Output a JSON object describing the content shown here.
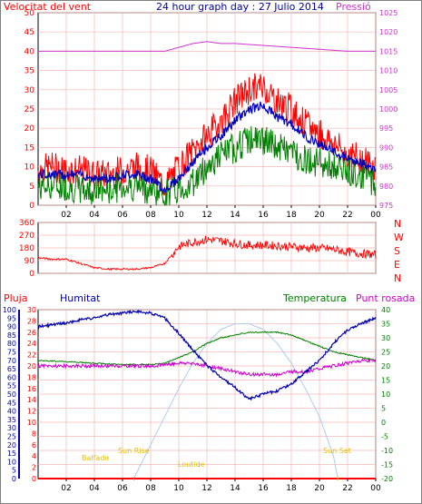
{
  "title": "24 hour graph day : 27 Julio 2014",
  "colors": {
    "background": "#ffffff",
    "plot_bg": "#ffffff",
    "grid": "#f0b8b8",
    "frame": "#000000",
    "wind": "#ff0000",
    "wind_avg": "#0000bb",
    "wind_dir_green": "#008000",
    "pressure": "#cc33cc",
    "title": "#0000a0",
    "rain": "#ff0000",
    "humidity": "#0000aa",
    "temperature": "#008000",
    "dewpoint": "#cc00cc",
    "sun": "#aaccee",
    "sun_labels": "#e0c000"
  },
  "chart_data": [
    {
      "type": "line",
      "id": "wind-pressure",
      "ylabel_left": "Velocitat del vent",
      "ylabel_right": "Pressió",
      "x_ticks": [
        "02",
        "04",
        "06",
        "08",
        "10",
        "12",
        "14",
        "16",
        "18",
        "20",
        "22",
        "00"
      ],
      "x_tick_hours": [
        2,
        4,
        6,
        8,
        10,
        12,
        14,
        16,
        18,
        20,
        22,
        24
      ],
      "ylim_left": [
        0,
        50
      ],
      "yticks_left": [
        0,
        5,
        10,
        15,
        20,
        25,
        30,
        35,
        40,
        45,
        50
      ],
      "ylim_right": [
        975,
        1025
      ],
      "yticks_right": [
        975,
        980,
        985,
        990,
        995,
        1000,
        1005,
        1010,
        1015,
        1020,
        1025
      ],
      "series": [
        {
          "key": "gust",
          "hours": [
            0,
            1,
            2,
            3,
            4,
            5,
            6,
            7,
            8,
            9,
            10,
            11,
            12,
            13,
            14,
            15,
            16,
            17,
            18,
            19,
            20,
            21,
            22,
            23,
            24
          ],
          "values": [
            9,
            10,
            9,
            9,
            8,
            8,
            9,
            10,
            9,
            5,
            10,
            14,
            18,
            22,
            27,
            30,
            31,
            27,
            25,
            21,
            19,
            16,
            13,
            12,
            10
          ]
        },
        {
          "key": "avg",
          "hours": [
            0,
            1,
            2,
            3,
            4,
            5,
            6,
            7,
            8,
            9,
            10,
            11,
            12,
            13,
            14,
            15,
            16,
            17,
            18,
            19,
            20,
            21,
            22,
            23,
            24
          ],
          "values": [
            8,
            8,
            8,
            8,
            7,
            7,
            8,
            8,
            7,
            4,
            7,
            11,
            15,
            18,
            22,
            25,
            26,
            23,
            21,
            18,
            16,
            14,
            12,
            11,
            9
          ]
        },
        {
          "key": "min",
          "hours": [
            0,
            1,
            2,
            3,
            4,
            5,
            6,
            7,
            8,
            9,
            10,
            11,
            12,
            13,
            14,
            15,
            16,
            17,
            18,
            19,
            20,
            21,
            22,
            23,
            24
          ],
          "values": [
            5,
            5,
            5,
            4,
            4,
            4,
            5,
            5,
            4,
            3,
            4,
            6,
            10,
            13,
            15,
            17,
            17,
            15,
            14,
            12,
            11,
            10,
            9,
            8,
            6
          ]
        },
        {
          "key": "pressure",
          "hours": [
            0,
            2,
            4,
            6,
            8,
            9,
            10,
            11,
            12,
            13,
            14,
            16,
            18,
            20,
            22,
            23,
            24
          ],
          "values": [
            1015,
            1015,
            1015,
            1015,
            1015,
            1015,
            1016,
            1017,
            1017.5,
            1017,
            1017,
            1016.5,
            1016,
            1015.5,
            1015,
            1015,
            1015
          ]
        }
      ]
    },
    {
      "type": "line",
      "id": "wind-direction",
      "ylim": [
        0,
        360
      ],
      "yticks": [
        0,
        90,
        180,
        270,
        360
      ],
      "right_labels": [
        "N",
        "W",
        "S",
        "E",
        "N"
      ],
      "x_ticks": [
        "02",
        "04",
        "06",
        "08",
        "10",
        "12",
        "14",
        "16",
        "18",
        "20",
        "22",
        "00"
      ],
      "series": [
        {
          "key": "direction",
          "hours": [
            0,
            1,
            2,
            3,
            4,
            5,
            6,
            7,
            8,
            9,
            10,
            11,
            12,
            13,
            14,
            15,
            16,
            17,
            18,
            19,
            20,
            21,
            22,
            23,
            24
          ],
          "values": [
            110,
            100,
            100,
            70,
            40,
            30,
            30,
            30,
            40,
            70,
            190,
            220,
            240,
            230,
            210,
            200,
            200,
            195,
            190,
            180,
            180,
            170,
            150,
            140,
            130
          ]
        }
      ]
    },
    {
      "type": "line",
      "id": "rain-hum-temp",
      "legend": [
        "Pluja",
        "Humitat",
        "Temperatura",
        "Punt rosada"
      ],
      "ylim_left": [
        0,
        30
      ],
      "yticks_left": [
        0,
        2,
        4,
        6,
        8,
        10,
        12,
        14,
        16,
        18,
        20,
        22,
        24,
        26,
        28,
        30
      ],
      "ylim_hum": [
        0,
        100
      ],
      "yticks_hum": [
        0,
        5,
        10,
        15,
        20,
        25,
        30,
        35,
        40,
        45,
        50,
        55,
        60,
        65,
        70,
        75,
        80,
        85,
        90,
        95,
        100
      ],
      "ylim_right": [
        -20,
        40
      ],
      "yticks_right": [
        -20,
        -15,
        -10,
        -5,
        0,
        5,
        10,
        15,
        20,
        25,
        30,
        35,
        40
      ],
      "x_ticks": [
        "02",
        "04",
        "06",
        "08",
        "10",
        "12",
        "14",
        "16",
        "18",
        "20",
        "22",
        "00"
      ],
      "sun_labels": [
        "Balfade",
        "Sun Rise",
        "Loutide",
        "Sun Set"
      ],
      "series": [
        {
          "key": "humidity",
          "hours": [
            0,
            1,
            2,
            3,
            4,
            5,
            6,
            7,
            8,
            9,
            10,
            11,
            12,
            13,
            14,
            15,
            16,
            17,
            18,
            19,
            20,
            21,
            22,
            23,
            24
          ],
          "values": [
            90,
            91,
            92,
            94,
            95,
            97,
            98,
            99,
            98,
            95,
            86,
            76,
            67,
            60,
            54,
            47,
            50,
            52,
            56,
            63,
            70,
            80,
            88,
            92,
            95
          ]
        },
        {
          "key": "temperature",
          "hours": [
            0,
            2,
            4,
            6,
            8,
            9,
            10,
            11,
            12,
            13,
            14,
            15,
            16,
            17,
            18,
            19,
            20,
            21,
            22,
            23,
            24
          ],
          "values": [
            22,
            21.5,
            21,
            20.5,
            20.5,
            21,
            23,
            25,
            28,
            30,
            31,
            32,
            32,
            32,
            31,
            29,
            27,
            25,
            24,
            23,
            22
          ]
        },
        {
          "key": "dewpoint",
          "hours": [
            0,
            2,
            4,
            6,
            8,
            10,
            11,
            12,
            13,
            14,
            15,
            16,
            17,
            18,
            19,
            20,
            21,
            22,
            23,
            24
          ],
          "values": [
            20,
            20,
            20,
            20,
            20,
            21,
            21,
            20,
            19,
            18,
            17,
            17,
            17,
            18,
            18,
            19,
            20,
            21,
            22,
            22
          ]
        },
        {
          "key": "sun",
          "hours": [
            6.8,
            8,
            9,
            10,
            11,
            12,
            13,
            14,
            14.5,
            15,
            16,
            17,
            18,
            19,
            20,
            21,
            21.3
          ],
          "values": [
            -20,
            -8,
            2,
            12,
            21,
            28,
            33,
            35,
            35,
            35,
            33,
            28,
            21,
            12,
            2,
            -12,
            -20
          ]
        },
        {
          "key": "rain",
          "hours": [
            0,
            24
          ],
          "values": [
            0,
            0
          ]
        }
      ]
    }
  ]
}
